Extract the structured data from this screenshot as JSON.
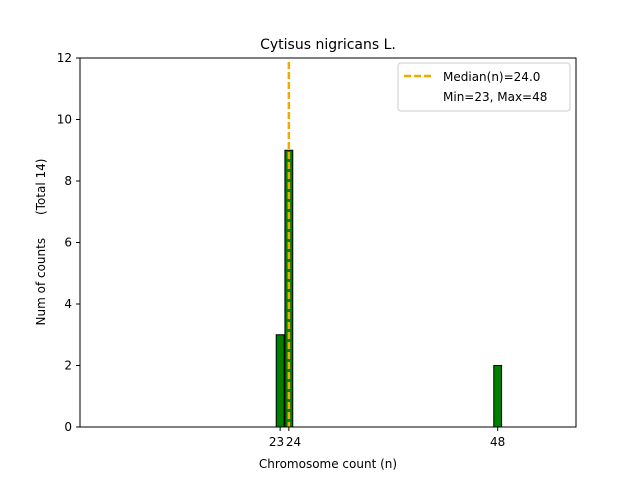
{
  "chart_data": {
    "type": "bar",
    "title": "Cytisus nigricans L.",
    "xlabel": "Chromosome count (n)",
    "ylabel": "Num of counts      (Total 14)",
    "x": [
      23,
      24,
      48
    ],
    "values": [
      3,
      9,
      2
    ],
    "xlim": [
      0,
      57
    ],
    "ylim": [
      0,
      12
    ],
    "xticks": [
      23,
      24,
      48
    ],
    "yticks": [
      0,
      2,
      4,
      6,
      8,
      10,
      12
    ],
    "bar_color": "#008000",
    "bar_edge_color": "#000000",
    "median": 24.0,
    "median_color": "#f5a900",
    "legend": {
      "position": "top-right",
      "entries": [
        "Median(n)=24.0",
        "Min=23, Max=48"
      ]
    },
    "grid": false
  }
}
